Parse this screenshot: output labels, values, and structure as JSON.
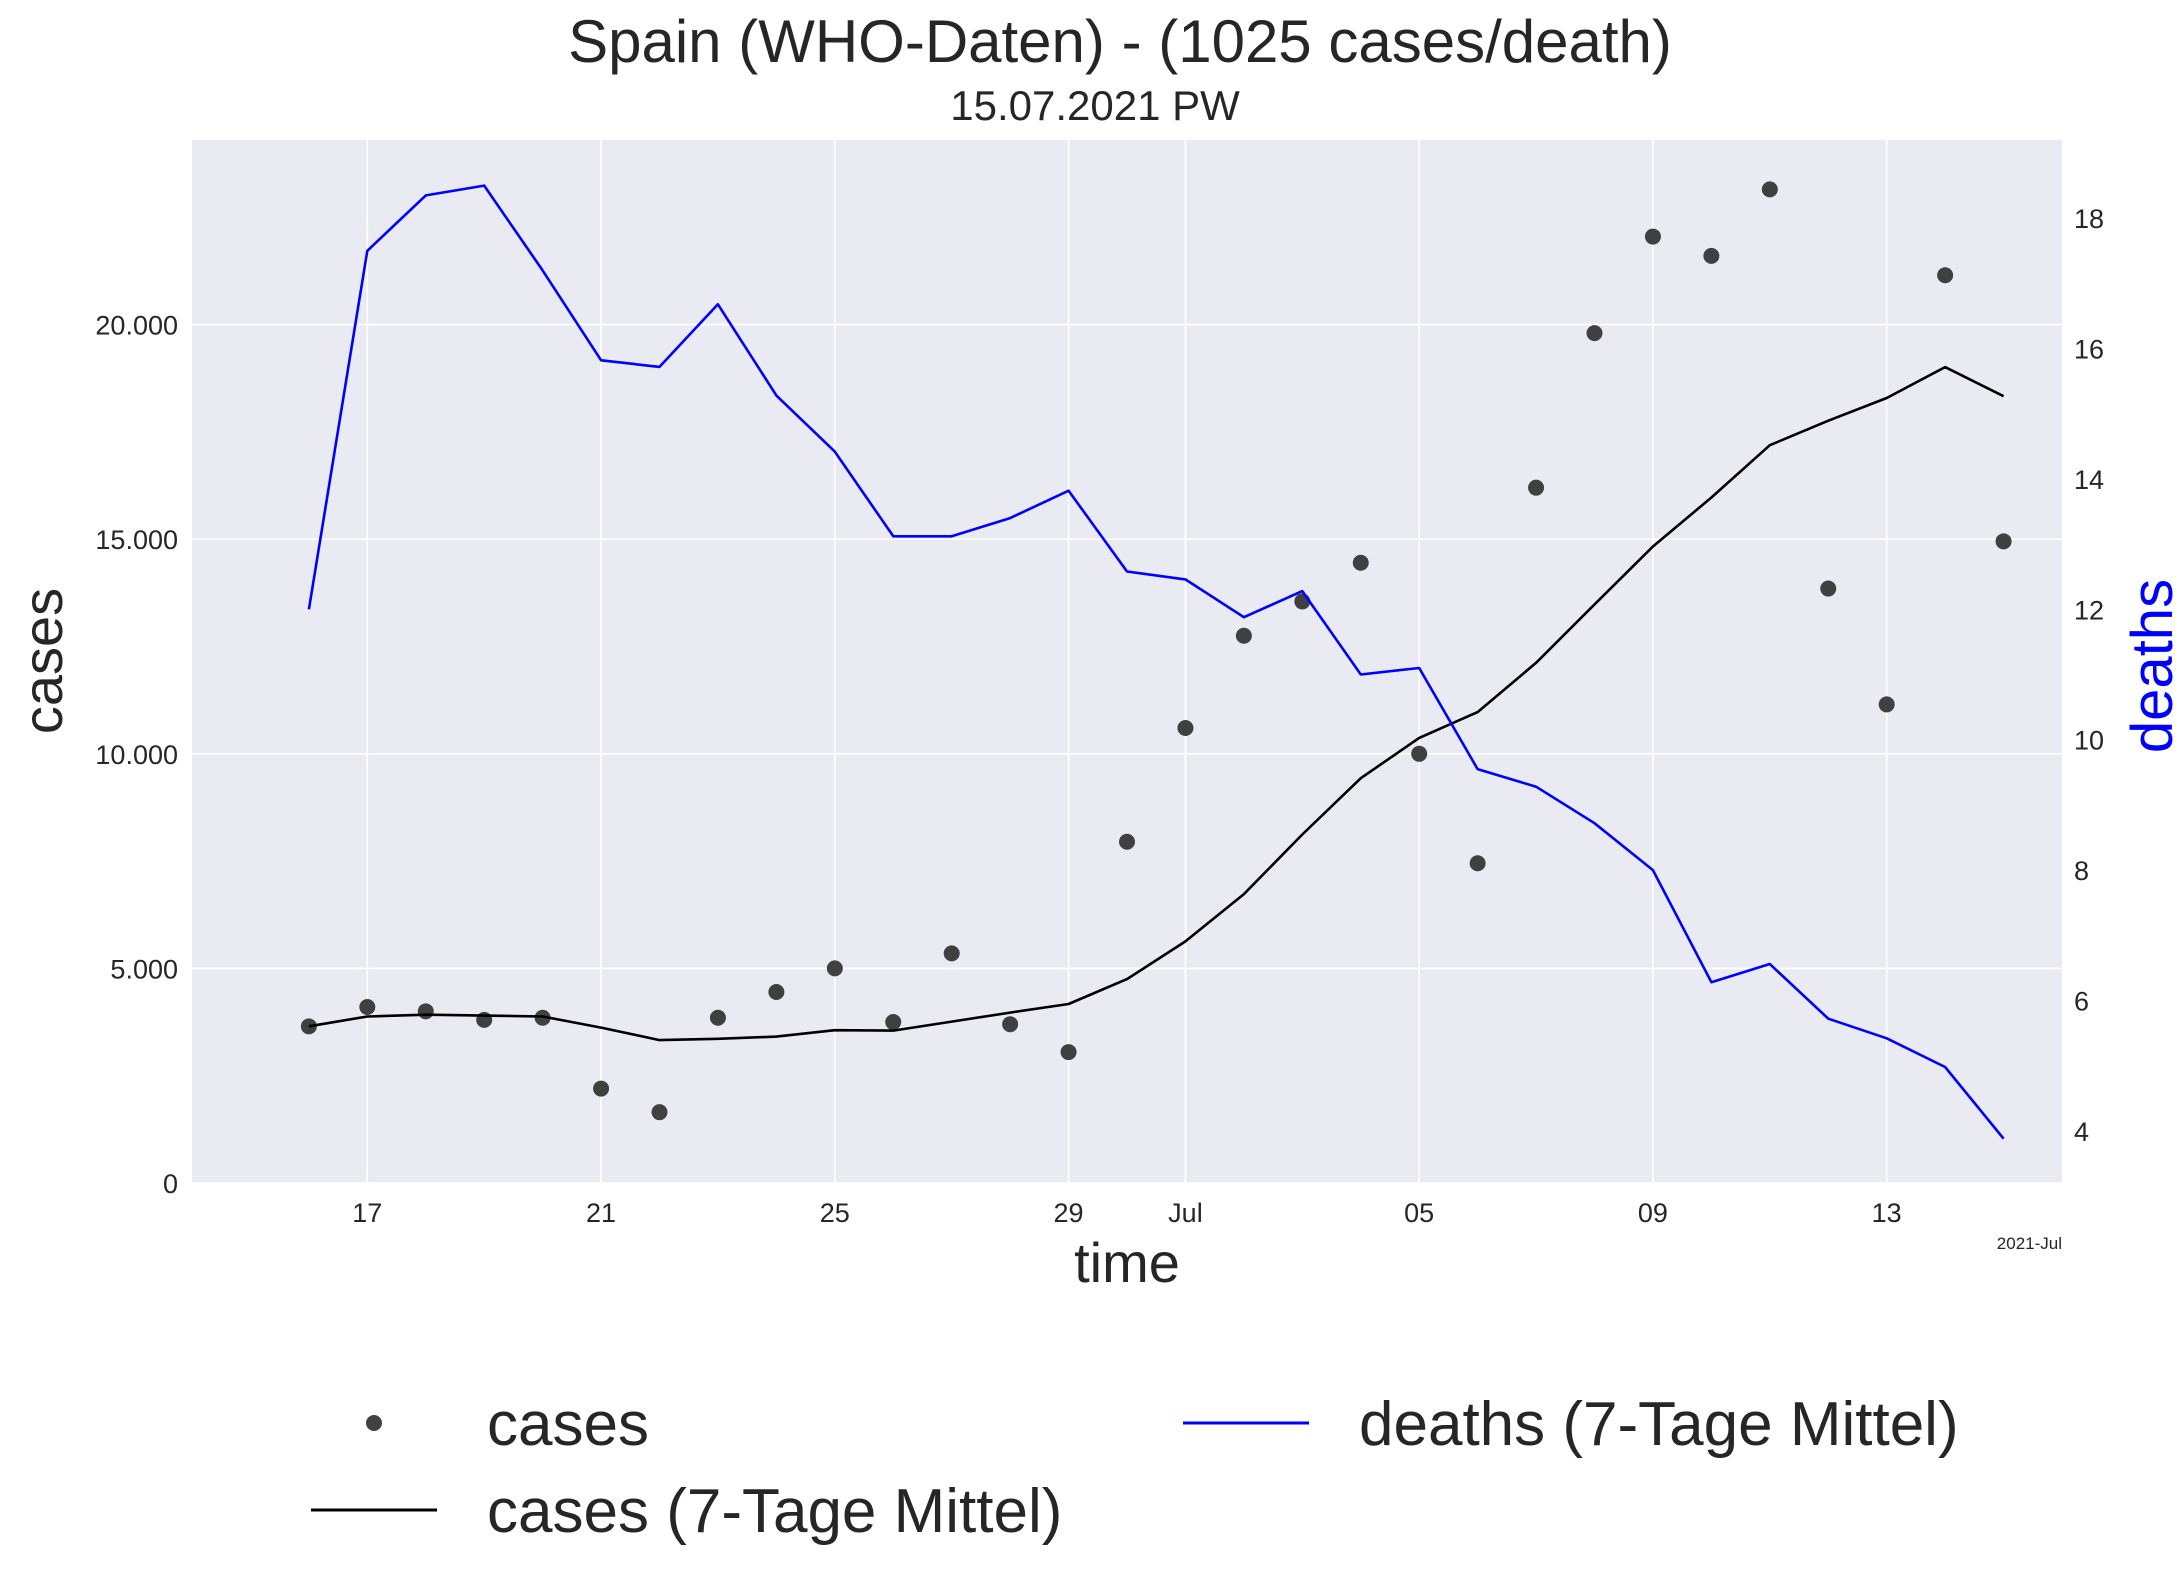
{
  "chart_data": {
    "type": "line",
    "title": "Spain (WHO-Daten) - (1025 cases/death)",
    "subtitle": "15.07.2021 PW",
    "xlabel": "time",
    "ylabel_left": "cases",
    "ylabel_right": "deaths",
    "x_offset_label": "2021-Jul",
    "grid": true,
    "legend_position": "bottom",
    "x_dates": [
      "2021-06-16",
      "2021-06-17",
      "2021-06-18",
      "2021-06-19",
      "2021-06-20",
      "2021-06-21",
      "2021-06-22",
      "2021-06-23",
      "2021-06-24",
      "2021-06-25",
      "2021-06-26",
      "2021-06-27",
      "2021-06-28",
      "2021-06-29",
      "2021-06-30",
      "2021-07-01",
      "2021-07-02",
      "2021-07-03",
      "2021-07-04",
      "2021-07-05",
      "2021-07-06",
      "2021-07-07",
      "2021-07-08",
      "2021-07-09",
      "2021-07-10",
      "2021-07-11",
      "2021-07-12",
      "2021-07-13",
      "2021-07-14",
      "2021-07-15"
    ],
    "x_range": [
      "2021-06-14",
      "2021-07-16"
    ],
    "x_ticks": [
      {
        "date": "2021-06-17",
        "label": "17"
      },
      {
        "date": "2021-06-21",
        "label": "21"
      },
      {
        "date": "2021-06-25",
        "label": "25"
      },
      {
        "date": "2021-06-29",
        "label": "29"
      },
      {
        "date": "2021-07-01",
        "label": "Jul"
      },
      {
        "date": "2021-07-05",
        "label": "05"
      },
      {
        "date": "2021-07-09",
        "label": "09"
      },
      {
        "date": "2021-07-13",
        "label": "13"
      }
    ],
    "y_left_range": [
      0,
      24300
    ],
    "y_left_ticks": [
      {
        "value": 0,
        "label": "0"
      },
      {
        "value": 5000,
        "label": "5.000"
      },
      {
        "value": 10000,
        "label": "10.000"
      },
      {
        "value": 15000,
        "label": "15.000"
      },
      {
        "value": 20000,
        "label": "20.000"
      }
    ],
    "y_right_range": [
      3.2,
      19.2
    ],
    "y_right_ticks": [
      {
        "value": 4,
        "label": "4"
      },
      {
        "value": 6,
        "label": "6"
      },
      {
        "value": 8,
        "label": "8"
      },
      {
        "value": 10,
        "label": "10"
      },
      {
        "value": 12,
        "label": "12"
      },
      {
        "value": 14,
        "label": "14"
      },
      {
        "value": 16,
        "label": "16"
      },
      {
        "value": 18,
        "label": "18"
      }
    ],
    "series": [
      {
        "name": "cases",
        "kind": "scatter",
        "axis": "left",
        "color": "#404040",
        "values": [
          3650,
          4100,
          4000,
          3800,
          3850,
          2200,
          1650,
          3850,
          4450,
          5000,
          3750,
          5350,
          3700,
          3050,
          7950,
          10600,
          12750,
          13550,
          14450,
          10000,
          7450,
          16200,
          19800,
          22050,
          21600,
          23150,
          13850,
          11150,
          21150,
          14950
        ]
      },
      {
        "name": "cases (7-Tage Mittel)",
        "kind": "line",
        "axis": "left",
        "color": "#000000",
        "values": [
          3650,
          3880,
          3920,
          3900,
          3880,
          3620,
          3330,
          3360,
          3410,
          3560,
          3550,
          3760,
          3970,
          4170,
          4750,
          5630,
          6730,
          8120,
          9430,
          10370,
          10970,
          12120,
          13480,
          14830,
          15970,
          17190,
          17760,
          18290,
          19010,
          18330
        ]
      },
      {
        "name": "deaths (7-Tage Mittel)",
        "kind": "line",
        "axis": "right",
        "color": "#0000ff",
        "values": [
          12.0,
          17.5,
          18.35,
          18.5,
          17.2,
          15.82,
          15.72,
          16.68,
          15.28,
          14.42,
          13.12,
          13.12,
          13.4,
          13.82,
          12.58,
          12.46,
          11.88,
          12.28,
          11.0,
          11.1,
          9.55,
          9.28,
          8.72,
          8.0,
          6.28,
          6.56,
          5.72,
          5.42,
          4.98,
          3.88
        ]
      }
    ],
    "legend": [
      {
        "label": "cases",
        "series": 0
      },
      {
        "label": "cases (7-Tage Mittel)",
        "series": 1
      },
      {
        "label": "deaths (7-Tage Mittel)",
        "series": 2
      }
    ]
  }
}
